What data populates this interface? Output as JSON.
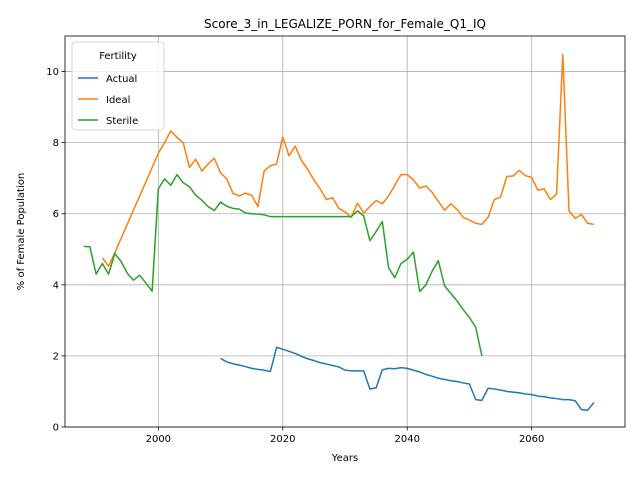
{
  "chart_data": {
    "type": "line",
    "title": "Score_3_in_LEGALIZE_PORN_for_Female_Q1_IQ",
    "xlabel": "Years",
    "ylabel": "% of Female Population",
    "xlim": [
      1985,
      2075
    ],
    "ylim": [
      0,
      11
    ],
    "xticks": [
      2000,
      2020,
      2040,
      2060
    ],
    "yticks": [
      0,
      2,
      4,
      6,
      8,
      10
    ],
    "grid": true,
    "legend": {
      "title": "Fertility",
      "position": "top-left"
    },
    "series": [
      {
        "name": "Actual",
        "color": "#1f77b4",
        "x": [
          2010,
          2011,
          2012,
          2013,
          2014,
          2015,
          2016,
          2017,
          2018,
          2019,
          2020,
          2021,
          2022,
          2023,
          2024,
          2025,
          2026,
          2027,
          2028,
          2029,
          2030,
          2031,
          2032,
          2033,
          2034,
          2035,
          2036,
          2037,
          2038,
          2039,
          2040,
          2041,
          2042,
          2043,
          2044,
          2045,
          2046,
          2047,
          2048,
          2049,
          2050,
          2051,
          2052,
          2053,
          2054,
          2055,
          2056,
          2057,
          2058,
          2059,
          2060,
          2061,
          2062,
          2063,
          2064,
          2065,
          2066,
          2067,
          2068,
          2069,
          2070
        ],
        "values": [
          1.93,
          1.83,
          1.78,
          1.74,
          1.7,
          1.65,
          1.62,
          1.6,
          1.56,
          2.24,
          2.19,
          2.13,
          2.07,
          1.99,
          1.92,
          1.87,
          1.81,
          1.77,
          1.73,
          1.69,
          1.6,
          1.58,
          1.58,
          1.58,
          1.07,
          1.1,
          1.61,
          1.65,
          1.64,
          1.67,
          1.65,
          1.6,
          1.55,
          1.48,
          1.43,
          1.37,
          1.34,
          1.3,
          1.28,
          1.24,
          1.21,
          0.77,
          0.75,
          1.09,
          1.07,
          1.04,
          1.0,
          0.98,
          0.96,
          0.93,
          0.91,
          0.87,
          0.85,
          0.82,
          0.8,
          0.77,
          0.77,
          0.74,
          0.49,
          0.47,
          0.69
        ]
      },
      {
        "name": "Ideal",
        "color": "#ff7f0e",
        "x": [
          1991,
          1992,
          1993,
          1994,
          1995,
          1996,
          1997,
          1998,
          1999,
          2000,
          2001,
          2002,
          2003,
          2004,
          2005,
          2006,
          2007,
          2008,
          2009,
          2010,
          2011,
          2012,
          2013,
          2014,
          2015,
          2016,
          2017,
          2018,
          2019,
          2020,
          2021,
          2022,
          2023,
          2024,
          2025,
          2026,
          2027,
          2028,
          2029,
          2030,
          2031,
          2032,
          2033,
          2034,
          2035,
          2036,
          2037,
          2038,
          2039,
          2040,
          2041,
          2042,
          2043,
          2044,
          2045,
          2046,
          2047,
          2048,
          2049,
          2050,
          2051,
          2052,
          2053,
          2054,
          2055,
          2056,
          2057,
          2058,
          2059,
          2060,
          2061,
          2062,
          2063,
          2064,
          2065,
          2066,
          2067,
          2068,
          2069,
          2070
        ],
        "values": [
          4.76,
          4.52,
          4.9,
          5.3,
          5.7,
          6.1,
          6.5,
          6.9,
          7.3,
          7.7,
          8.0,
          8.33,
          8.15,
          8.0,
          7.3,
          7.53,
          7.2,
          7.4,
          7.56,
          7.15,
          6.98,
          6.57,
          6.5,
          6.58,
          6.52,
          6.2,
          7.2,
          7.35,
          7.4,
          8.16,
          7.63,
          7.9,
          7.5,
          7.25,
          6.95,
          6.7,
          6.4,
          6.45,
          6.15,
          6.05,
          5.9,
          6.3,
          6.02,
          6.2,
          6.37,
          6.28,
          6.5,
          6.8,
          7.1,
          7.1,
          6.95,
          6.72,
          6.78,
          6.6,
          6.35,
          6.1,
          6.28,
          6.12,
          5.9,
          5.82,
          5.73,
          5.7,
          5.9,
          6.4,
          6.47,
          7.05,
          7.06,
          7.22,
          7.07,
          7.02,
          6.66,
          6.7,
          6.4,
          6.55,
          10.48,
          6.08,
          5.87,
          5.98,
          5.73,
          5.7
        ]
      },
      {
        "name": "Sterile",
        "color": "#2ca02c",
        "x": [
          1988,
          1989,
          1990,
          1991,
          1992,
          1993,
          1994,
          1995,
          1996,
          1997,
          1998,
          1999,
          2000,
          2001,
          2002,
          2003,
          2004,
          2005,
          2006,
          2007,
          2008,
          2009,
          2010,
          2011,
          2012,
          2013,
          2014,
          2015,
          2016,
          2017,
          2018,
          2019,
          2020,
          2021,
          2022,
          2023,
          2024,
          2025,
          2026,
          2027,
          2028,
          2029,
          2030,
          2031,
          2032,
          2033,
          2034,
          2035,
          2036,
          2037,
          2038,
          2039,
          2040,
          2041,
          2042,
          2043,
          2044,
          2045,
          2046,
          2047,
          2048,
          2049,
          2050,
          2051,
          2052
        ],
        "values": [
          5.08,
          5.07,
          4.3,
          4.6,
          4.3,
          4.88,
          4.66,
          4.33,
          4.13,
          4.27,
          4.05,
          3.82,
          6.7,
          6.98,
          6.8,
          7.1,
          6.87,
          6.76,
          6.52,
          6.38,
          6.2,
          6.09,
          6.33,
          6.21,
          6.15,
          6.13,
          6.02,
          6.0,
          5.99,
          5.97,
          5.92,
          5.92,
          5.92,
          5.92,
          5.92,
          5.92,
          5.92,
          5.92,
          5.92,
          5.92,
          5.92,
          5.92,
          5.92,
          5.92,
          6.08,
          5.94,
          5.24,
          5.5,
          5.78,
          4.48,
          4.2,
          4.6,
          4.72,
          4.92,
          3.81,
          4.0,
          4.38,
          4.68,
          3.97,
          3.76,
          3.55,
          3.3,
          3.08,
          2.81,
          2.0
        ]
      }
    ]
  }
}
